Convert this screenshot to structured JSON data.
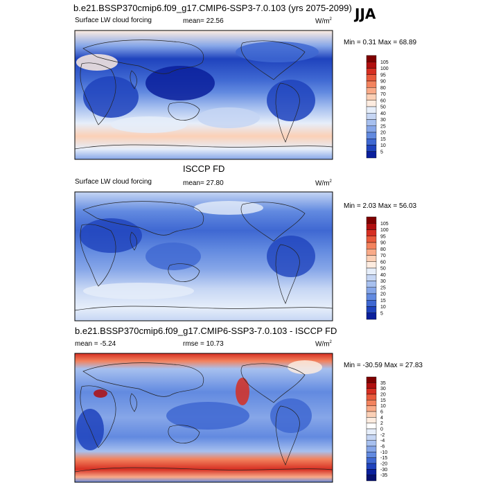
{
  "figure": {
    "title": "b.e21.BSSP370cmip6.f09_g17.CMIP6-SSP3-7.0.103 (yrs 2075-2099)",
    "season": "JJA"
  },
  "panels": [
    {
      "id": "model",
      "variable": "Surface LW cloud forcing",
      "mean_label": "mean=  22.56",
      "units_text": "W/m",
      "units_sup": "2",
      "minmax": "Min =   0.31 Max =  68.89",
      "colorbar": {
        "labels": [
          "105",
          "100",
          "95",
          "90",
          "80",
          "70",
          "60",
          "50",
          "40",
          "30",
          "25",
          "20",
          "15",
          "10",
          "5"
        ],
        "colors": [
          "#7f0000",
          "#b00f0f",
          "#d62f22",
          "#e85a3c",
          "#f3835e",
          "#f9aa88",
          "#fbd0b6",
          "#fdece0",
          "#e6eefa",
          "#c6d6f4",
          "#a7c0ef",
          "#86a6e8",
          "#628ae0",
          "#3f68d2",
          "#1f43bd",
          "#0a1f9c"
        ]
      }
    },
    {
      "id": "obs",
      "center_title": "ISCCP FD",
      "variable": "Surface LW cloud forcing",
      "mean_label": "mean=  27.80",
      "units_text": "W/m",
      "units_sup": "2",
      "minmax": "Min =   2.03 Max =  56.03",
      "colorbar": {
        "labels": [
          "105",
          "100",
          "95",
          "90",
          "80",
          "70",
          "60",
          "50",
          "40",
          "30",
          "25",
          "20",
          "15",
          "10",
          "5"
        ],
        "colors": [
          "#7f0000",
          "#b00f0f",
          "#d62f22",
          "#e85a3c",
          "#f3835e",
          "#f9aa88",
          "#fbd0b6",
          "#fdece0",
          "#e6eefa",
          "#c6d6f4",
          "#a7c0ef",
          "#86a6e8",
          "#628ae0",
          "#3f68d2",
          "#1f43bd",
          "#0a1f9c"
        ]
      }
    },
    {
      "id": "diff",
      "center_title": "b.e21.BSSP370cmip6.f09_g17.CMIP6-SSP3-7.0.103 - ISCCP FD",
      "mean_label": "mean =  -5.24",
      "rmse_label": "rmse =  10.73",
      "units_text": "W/m",
      "units_sup": "2",
      "minmax": "Min = -30.59 Max =  27.83",
      "colorbar": {
        "labels": [
          "35",
          "30",
          "20",
          "15",
          "10",
          "6",
          "4",
          "2",
          "0",
          "-2",
          "-4",
          "-6",
          "-10",
          "-15",
          "-20",
          "-30",
          "-35"
        ],
        "colors": [
          "#7f0000",
          "#b00f0f",
          "#d62f22",
          "#e85a3c",
          "#f3835e",
          "#f9aa88",
          "#fbd0b6",
          "#fdece0",
          "#ffffff",
          "#e6eefa",
          "#c6d6f4",
          "#a7c0ef",
          "#86a6e8",
          "#628ae0",
          "#3f68d2",
          "#1f43bd",
          "#0a1f9c",
          "#061070"
        ]
      }
    }
  ]
}
